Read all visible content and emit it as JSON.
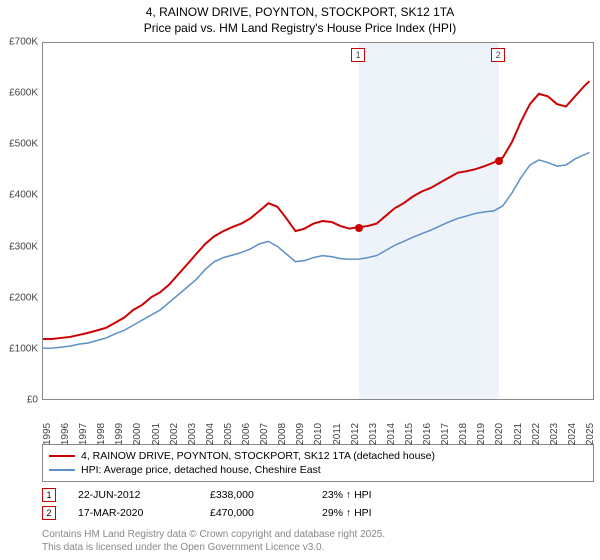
{
  "title": {
    "line1": "4, RAINOW DRIVE, POYNTON, STOCKPORT, SK12 1TA",
    "line2": "Price paid vs. HM Land Registry's House Price Index (HPI)"
  },
  "chart": {
    "type": "line",
    "background_color": "#ffffff",
    "border_color": "#888888",
    "shaded_band_color": "#eef3f9",
    "shaded_band": {
      "x_start": 2012.47,
      "x_end": 2020.21
    },
    "xlim": [
      1995,
      2025.5
    ],
    "ylim": [
      0,
      700000
    ],
    "ytick_step": 100000,
    "ytick_format": "£{v}K",
    "yticks": [
      "£0",
      "£100K",
      "£200K",
      "£300K",
      "£400K",
      "£500K",
      "£600K",
      "£700K"
    ],
    "xticks": [
      1995,
      1996,
      1997,
      1998,
      1999,
      2000,
      2001,
      2002,
      2003,
      2004,
      2005,
      2006,
      2007,
      2008,
      2009,
      2010,
      2011,
      2012,
      2013,
      2014,
      2015,
      2016,
      2017,
      2018,
      2019,
      2020,
      2021,
      2022,
      2023,
      2024,
      2025
    ],
    "label_fontsize": 10,
    "title_fontsize": 12,
    "series": [
      {
        "id": "price_paid",
        "label": "4, RAINOW DRIVE, POYNTON, STOCKPORT, SK12 1TA (detached house)",
        "color": "#cc0000",
        "line_width": 2,
        "data": [
          [
            1995,
            118000
          ],
          [
            1995.5,
            118000
          ],
          [
            1996,
            120000
          ],
          [
            1996.5,
            122000
          ],
          [
            1997,
            126000
          ],
          [
            1997.5,
            130000
          ],
          [
            1998,
            135000
          ],
          [
            1998.5,
            140000
          ],
          [
            1999,
            150000
          ],
          [
            1999.5,
            160000
          ],
          [
            2000,
            175000
          ],
          [
            2000.5,
            185000
          ],
          [
            2001,
            200000
          ],
          [
            2001.5,
            210000
          ],
          [
            2002,
            225000
          ],
          [
            2002.5,
            245000
          ],
          [
            2003,
            265000
          ],
          [
            2003.5,
            285000
          ],
          [
            2004,
            305000
          ],
          [
            2004.5,
            320000
          ],
          [
            2005,
            330000
          ],
          [
            2005.5,
            338000
          ],
          [
            2006,
            345000
          ],
          [
            2006.5,
            355000
          ],
          [
            2007,
            370000
          ],
          [
            2007.5,
            385000
          ],
          [
            2008,
            378000
          ],
          [
            2008.5,
            355000
          ],
          [
            2009,
            330000
          ],
          [
            2009.5,
            335000
          ],
          [
            2010,
            345000
          ],
          [
            2010.5,
            350000
          ],
          [
            2011,
            348000
          ],
          [
            2011.5,
            340000
          ],
          [
            2012,
            335000
          ],
          [
            2012.47,
            338000
          ],
          [
            2013,
            340000
          ],
          [
            2013.5,
            345000
          ],
          [
            2014,
            360000
          ],
          [
            2014.5,
            375000
          ],
          [
            2015,
            385000
          ],
          [
            2015.5,
            398000
          ],
          [
            2016,
            408000
          ],
          [
            2016.5,
            415000
          ],
          [
            2017,
            425000
          ],
          [
            2017.5,
            435000
          ],
          [
            2018,
            445000
          ],
          [
            2018.5,
            448000
          ],
          [
            2019,
            452000
          ],
          [
            2019.5,
            458000
          ],
          [
            2020,
            465000
          ],
          [
            2020.21,
            470000
          ],
          [
            2020.5,
            475000
          ],
          [
            2021,
            505000
          ],
          [
            2021.5,
            545000
          ],
          [
            2022,
            580000
          ],
          [
            2022.5,
            600000
          ],
          [
            2023,
            595000
          ],
          [
            2023.5,
            580000
          ],
          [
            2024,
            575000
          ],
          [
            2024.5,
            595000
          ],
          [
            2025,
            615000
          ],
          [
            2025.3,
            625000
          ]
        ]
      },
      {
        "id": "hpi",
        "label": "HPI: Average price, detached house, Cheshire East",
        "color": "#5b8fc7",
        "line_width": 1.5,
        "data": [
          [
            1995,
            100000
          ],
          [
            1995.5,
            100000
          ],
          [
            1996,
            102000
          ],
          [
            1996.5,
            104000
          ],
          [
            1997,
            108000
          ],
          [
            1997.5,
            110000
          ],
          [
            1998,
            115000
          ],
          [
            1998.5,
            120000
          ],
          [
            1999,
            128000
          ],
          [
            1999.5,
            135000
          ],
          [
            2000,
            145000
          ],
          [
            2000.5,
            155000
          ],
          [
            2001,
            165000
          ],
          [
            2001.5,
            175000
          ],
          [
            2002,
            190000
          ],
          [
            2002.5,
            205000
          ],
          [
            2003,
            220000
          ],
          [
            2003.5,
            235000
          ],
          [
            2004,
            255000
          ],
          [
            2004.5,
            270000
          ],
          [
            2005,
            278000
          ],
          [
            2005.5,
            283000
          ],
          [
            2006,
            288000
          ],
          [
            2006.5,
            295000
          ],
          [
            2007,
            305000
          ],
          [
            2007.5,
            310000
          ],
          [
            2008,
            300000
          ],
          [
            2008.5,
            285000
          ],
          [
            2009,
            270000
          ],
          [
            2009.5,
            272000
          ],
          [
            2010,
            278000
          ],
          [
            2010.5,
            282000
          ],
          [
            2011,
            280000
          ],
          [
            2011.5,
            276000
          ],
          [
            2012,
            275000
          ],
          [
            2012.5,
            275000
          ],
          [
            2013,
            278000
          ],
          [
            2013.5,
            282000
          ],
          [
            2014,
            292000
          ],
          [
            2014.5,
            302000
          ],
          [
            2015,
            310000
          ],
          [
            2015.5,
            318000
          ],
          [
            2016,
            325000
          ],
          [
            2016.5,
            332000
          ],
          [
            2017,
            340000
          ],
          [
            2017.5,
            348000
          ],
          [
            2018,
            355000
          ],
          [
            2018.5,
            360000
          ],
          [
            2019,
            365000
          ],
          [
            2019.5,
            368000
          ],
          [
            2020,
            370000
          ],
          [
            2020.5,
            380000
          ],
          [
            2021,
            405000
          ],
          [
            2021.5,
            435000
          ],
          [
            2022,
            460000
          ],
          [
            2022.5,
            470000
          ],
          [
            2023,
            465000
          ],
          [
            2023.5,
            458000
          ],
          [
            2024,
            460000
          ],
          [
            2024.5,
            472000
          ],
          [
            2025,
            480000
          ],
          [
            2025.3,
            485000
          ]
        ]
      }
    ],
    "markers": [
      {
        "n": "1",
        "x": 2012.47,
        "price": 338000
      },
      {
        "n": "2",
        "x": 2020.21,
        "price": 470000
      }
    ]
  },
  "legend": {
    "series1": "4, RAINOW DRIVE, POYNTON, STOCKPORT, SK12 1TA (detached house)",
    "series2": "HPI: Average price, detached house, Cheshire East"
  },
  "data_rows": [
    {
      "n": "1",
      "date": "22-JUN-2012",
      "price": "£338,000",
      "hpi": "23% ↑ HPI"
    },
    {
      "n": "2",
      "date": "17-MAR-2020",
      "price": "£470,000",
      "hpi": "29% ↑ HPI"
    }
  ],
  "footer": {
    "line1": "Contains HM Land Registry data © Crown copyright and database right 2025.",
    "line2": "This data is licensed under the Open Government Licence v3.0."
  }
}
